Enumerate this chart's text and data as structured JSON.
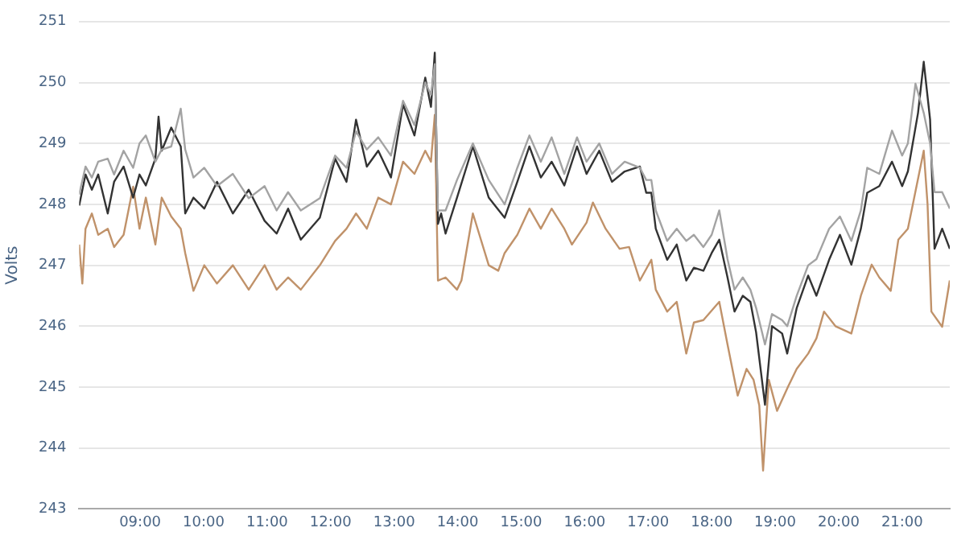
{
  "chart_data": {
    "type": "line",
    "ylabel": "Volts",
    "xlim": [
      8.04,
      21.75
    ],
    "ylim": [
      243,
      251
    ],
    "xticks": [
      {
        "value": 9,
        "label": "09:00"
      },
      {
        "value": 10,
        "label": "10:00"
      },
      {
        "value": 11,
        "label": "11:00"
      },
      {
        "value": 12,
        "label": "12:00"
      },
      {
        "value": 13,
        "label": "13:00"
      },
      {
        "value": 14,
        "label": "14:00"
      },
      {
        "value": 15,
        "label": "15:00"
      },
      {
        "value": 16,
        "label": "16:00"
      },
      {
        "value": 17,
        "label": "17:00"
      },
      {
        "value": 18,
        "label": "18:00"
      },
      {
        "value": 19,
        "label": "19:00"
      },
      {
        "value": 20,
        "label": "20:00"
      },
      {
        "value": 21,
        "label": "21:00"
      }
    ],
    "yticks": [
      243,
      244,
      245,
      246,
      247,
      248,
      249,
      250,
      251
    ],
    "grid": "y",
    "legend": false,
    "marker": "none",
    "line_style": "solid",
    "series": [
      {
        "color": "#a3a3a3",
        "x": [
          8.04,
          8.14,
          8.24,
          8.34,
          8.49,
          8.59,
          8.74,
          8.89,
          8.99,
          9.09,
          9.24,
          9.34,
          9.49,
          9.64,
          9.71,
          9.84,
          10.01,
          10.21,
          10.46,
          10.71,
          10.96,
          11.15,
          11.33,
          11.53,
          11.83,
          12.07,
          12.25,
          12.4,
          12.57,
          12.75,
          12.95,
          13.14,
          13.32,
          13.49,
          13.58,
          13.64,
          13.69,
          13.81,
          13.99,
          14.24,
          14.49,
          14.74,
          14.94,
          15.13,
          15.31,
          15.48,
          15.68,
          15.88,
          16.03,
          16.23,
          16.43,
          16.63,
          16.87,
          16.97,
          17.05,
          17.12,
          17.3,
          17.45,
          17.6,
          17.72,
          17.87,
          18.0,
          18.12,
          18.25,
          18.36,
          18.49,
          18.61,
          18.7,
          18.84,
          18.95,
          19.11,
          19.19,
          19.34,
          19.52,
          19.65,
          19.85,
          20.02,
          20.2,
          20.35,
          20.45,
          20.64,
          20.84,
          21.0,
          21.09,
          21.21,
          21.34,
          21.44,
          21.51,
          21.63,
          21.75
        ],
        "values": [
          248.16,
          248.62,
          248.44,
          248.7,
          248.75,
          248.49,
          248.88,
          248.6,
          249.0,
          249.13,
          248.7,
          248.9,
          248.95,
          249.57,
          248.9,
          248.44,
          248.6,
          248.3,
          248.5,
          248.1,
          248.3,
          247.9,
          248.2,
          247.9,
          248.1,
          248.8,
          248.6,
          249.2,
          248.9,
          249.1,
          248.8,
          249.7,
          249.3,
          250.0,
          249.8,
          250.3,
          247.9,
          247.9,
          248.4,
          249.0,
          248.4,
          248.0,
          248.6,
          249.13,
          248.7,
          249.1,
          248.5,
          249.1,
          248.7,
          249.0,
          248.5,
          248.7,
          248.6,
          248.4,
          248.4,
          247.9,
          247.4,
          247.6,
          247.4,
          247.5,
          247.3,
          247.5,
          247.9,
          247.1,
          246.6,
          246.8,
          246.6,
          246.3,
          245.7,
          246.2,
          246.1,
          246.0,
          246.5,
          247.0,
          247.1,
          247.6,
          247.8,
          247.4,
          247.9,
          248.6,
          248.5,
          249.21,
          248.8,
          249.0,
          249.98,
          249.5,
          249.0,
          248.2,
          248.2,
          247.93
        ]
      },
      {
        "color": "#333333",
        "x": [
          8.04,
          8.14,
          8.24,
          8.34,
          8.49,
          8.59,
          8.74,
          8.89,
          8.99,
          9.09,
          9.24,
          9.29,
          9.34,
          9.49,
          9.64,
          9.71,
          9.84,
          10.01,
          10.21,
          10.46,
          10.71,
          10.96,
          11.15,
          11.33,
          11.53,
          11.83,
          12.07,
          12.25,
          12.4,
          12.57,
          12.75,
          12.95,
          13.14,
          13.32,
          13.49,
          13.58,
          13.64,
          13.69,
          13.74,
          13.81,
          13.99,
          14.24,
          14.49,
          14.74,
          14.94,
          15.13,
          15.31,
          15.48,
          15.68,
          15.88,
          16.03,
          16.23,
          16.43,
          16.63,
          16.87,
          16.97,
          17.05,
          17.12,
          17.3,
          17.45,
          17.6,
          17.72,
          17.87,
          18.0,
          18.12,
          18.25,
          18.36,
          18.49,
          18.61,
          18.7,
          18.84,
          18.95,
          19.11,
          19.19,
          19.34,
          19.52,
          19.65,
          19.85,
          20.02,
          20.2,
          20.35,
          20.45,
          20.64,
          20.84,
          21.0,
          21.09,
          21.25,
          21.34,
          21.44,
          21.51,
          21.63,
          21.75
        ],
        "values": [
          247.98,
          248.49,
          248.24,
          248.49,
          247.85,
          248.37,
          248.62,
          248.11,
          248.49,
          248.31,
          248.75,
          249.44,
          248.88,
          249.26,
          248.95,
          247.85,
          248.11,
          247.93,
          248.37,
          247.85,
          248.24,
          247.73,
          247.52,
          247.93,
          247.42,
          247.78,
          248.75,
          248.37,
          249.39,
          248.62,
          248.88,
          248.44,
          249.64,
          249.13,
          250.08,
          249.6,
          250.49,
          247.68,
          247.85,
          247.52,
          248.11,
          248.95,
          248.11,
          247.78,
          248.37,
          248.95,
          248.44,
          248.7,
          248.31,
          248.95,
          248.5,
          248.88,
          248.37,
          248.54,
          248.62,
          248.19,
          248.19,
          247.6,
          247.09,
          247.34,
          246.75,
          246.96,
          246.91,
          247.2,
          247.42,
          246.8,
          246.24,
          246.5,
          246.4,
          245.9,
          244.71,
          246.0,
          245.88,
          245.55,
          246.3,
          246.83,
          246.5,
          247.09,
          247.5,
          247.01,
          247.6,
          248.19,
          248.3,
          248.7,
          248.3,
          248.54,
          249.5,
          250.34,
          249.39,
          247.27,
          247.6,
          247.27
        ]
      },
      {
        "color": "#c0926a",
        "x": [
          8.04,
          8.09,
          8.14,
          8.24,
          8.34,
          8.49,
          8.59,
          8.74,
          8.89,
          8.99,
          9.09,
          9.24,
          9.34,
          9.49,
          9.64,
          9.71,
          9.84,
          10.01,
          10.21,
          10.46,
          10.71,
          10.96,
          11.15,
          11.33,
          11.53,
          11.83,
          12.07,
          12.25,
          12.4,
          12.57,
          12.75,
          12.95,
          13.14,
          13.32,
          13.49,
          13.58,
          13.64,
          13.69,
          13.81,
          13.99,
          14.06,
          14.24,
          14.49,
          14.64,
          14.74,
          14.94,
          15.13,
          15.31,
          15.48,
          15.68,
          15.8,
          16.03,
          16.13,
          16.33,
          16.55,
          16.7,
          16.87,
          17.05,
          17.12,
          17.3,
          17.45,
          17.6,
          17.72,
          17.87,
          18.12,
          18.25,
          18.41,
          18.55,
          18.66,
          18.75,
          18.81,
          18.9,
          19.03,
          19.2,
          19.34,
          19.52,
          19.65,
          19.77,
          19.95,
          20.2,
          20.35,
          20.52,
          20.64,
          20.82,
          20.94,
          21.09,
          21.19,
          21.34,
          21.4,
          21.46,
          21.63,
          21.75
        ],
        "values": [
          247.34,
          246.7,
          247.6,
          247.85,
          247.5,
          247.6,
          247.3,
          247.5,
          248.29,
          247.6,
          248.11,
          247.34,
          248.11,
          247.8,
          247.6,
          247.2,
          246.58,
          247.0,
          246.7,
          247.0,
          246.6,
          247.0,
          246.6,
          246.8,
          246.6,
          247.0,
          247.4,
          247.6,
          247.85,
          247.6,
          248.11,
          248.0,
          248.7,
          248.5,
          248.88,
          248.7,
          249.47,
          246.75,
          246.8,
          246.6,
          246.75,
          247.85,
          247.0,
          246.91,
          247.2,
          247.5,
          247.93,
          247.6,
          247.93,
          247.6,
          247.34,
          247.7,
          248.03,
          247.6,
          247.27,
          247.3,
          246.75,
          247.09,
          246.6,
          246.24,
          246.4,
          245.55,
          246.06,
          246.1,
          246.4,
          245.7,
          244.86,
          245.3,
          245.12,
          244.7,
          243.63,
          245.12,
          244.61,
          245.0,
          245.3,
          245.55,
          245.8,
          246.24,
          246.0,
          245.88,
          246.5,
          247.01,
          246.8,
          246.58,
          247.42,
          247.6,
          248.11,
          248.88,
          248.0,
          246.24,
          245.99,
          246.75
        ]
      }
    ]
  }
}
